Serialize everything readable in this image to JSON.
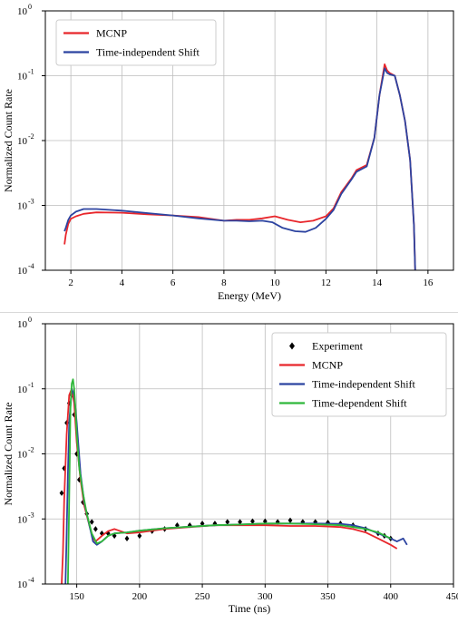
{
  "chart_data": [
    {
      "type": "line",
      "xlabel": "Energy (MeV)",
      "ylabel": "Normalized Count Rate",
      "xlim": [
        1,
        17
      ],
      "ylim": [
        0.0001,
        1
      ],
      "yscale": "log",
      "grid": true,
      "legend_placement": "top-left",
      "xticks": [
        2,
        4,
        6,
        8,
        10,
        12,
        14,
        16
      ],
      "yticks": [
        {
          "value": 0.0001,
          "base": "10",
          "exp": "-4"
        },
        {
          "value": 0.001,
          "base": "10",
          "exp": "-3"
        },
        {
          "value": 0.01,
          "base": "10",
          "exp": "-2"
        },
        {
          "value": 0.1,
          "base": "10",
          "exp": "-1"
        },
        {
          "value": 1,
          "base": "10",
          "exp": "0"
        }
      ],
      "series": [
        {
          "name": "MCNP",
          "color": "#e8262b",
          "x": [
            1.75,
            1.8,
            1.9,
            2.0,
            2.2,
            2.5,
            3.0,
            4.0,
            5.0,
            6.0,
            7.0,
            8.0,
            8.5,
            9.0,
            9.5,
            10.0,
            10.5,
            11.0,
            11.5,
            12.0,
            12.3,
            12.6,
            13.0,
            13.2,
            13.6,
            13.9,
            14.1,
            14.3,
            14.4,
            14.5,
            14.7,
            14.9,
            15.1,
            15.3,
            15.45,
            15.5
          ],
          "y": [
            0.00025,
            0.00035,
            0.00052,
            0.00062,
            0.00068,
            0.00074,
            0.00078,
            0.00077,
            0.00073,
            0.0007,
            0.00066,
            0.00058,
            0.0006,
            0.0006,
            0.00063,
            0.00068,
            0.0006,
            0.00055,
            0.00058,
            0.00068,
            0.0009,
            0.0016,
            0.0026,
            0.0035,
            0.0042,
            0.011,
            0.05,
            0.15,
            0.12,
            0.11,
            0.1,
            0.05,
            0.02,
            0.005,
            0.0005,
            0.0001
          ]
        },
        {
          "name": "Time-independent Shift",
          "color": "#2c43a0",
          "x": [
            1.75,
            1.8,
            1.9,
            2.0,
            2.2,
            2.5,
            3.0,
            4.0,
            5.0,
            6.0,
            7.0,
            8.0,
            8.5,
            9.0,
            9.5,
            9.9,
            10.3,
            10.8,
            11.2,
            11.6,
            12.0,
            12.3,
            12.6,
            13.0,
            13.2,
            13.6,
            13.9,
            14.1,
            14.3,
            14.4,
            14.5,
            14.7,
            14.9,
            15.1,
            15.3,
            15.45,
            15.5
          ],
          "y": [
            0.0004,
            0.00045,
            0.0006,
            0.0007,
            0.0008,
            0.00088,
            0.00088,
            0.00083,
            0.00076,
            0.0007,
            0.00063,
            0.00058,
            0.00058,
            0.00057,
            0.00058,
            0.00055,
            0.00045,
            0.0004,
            0.00039,
            0.00045,
            0.00062,
            0.00085,
            0.0015,
            0.0025,
            0.0033,
            0.004,
            0.011,
            0.05,
            0.13,
            0.11,
            0.105,
            0.1,
            0.05,
            0.02,
            0.005,
            0.0005,
            0.0001
          ]
        }
      ]
    },
    {
      "type": "line",
      "xlabel": "Time (ns)",
      "ylabel": "Normalized Count Rate",
      "xlim": [
        125,
        450
      ],
      "ylim": [
        0.0001,
        1
      ],
      "yscale": "log",
      "grid": true,
      "legend_placement": "top-right",
      "xticks": [
        150,
        200,
        250,
        300,
        350,
        400,
        450
      ],
      "yticks": [
        {
          "value": 0.0001,
          "base": "10",
          "exp": "-4"
        },
        {
          "value": 0.001,
          "base": "10",
          "exp": "-3"
        },
        {
          "value": 0.01,
          "base": "10",
          "exp": "-2"
        },
        {
          "value": 0.1,
          "base": "10",
          "exp": "-1"
        },
        {
          "value": 1,
          "base": "10",
          "exp": "0"
        }
      ],
      "series": [
        {
          "name": "Experiment",
          "color": "#000000",
          "marker": "diamond",
          "x": [
            138,
            140,
            142,
            144,
            146,
            148,
            150,
            152,
            155,
            158,
            162,
            165,
            170,
            175,
            180,
            190,
            200,
            210,
            220,
            230,
            240,
            250,
            260,
            270,
            280,
            290,
            300,
            310,
            320,
            330,
            340,
            350,
            360,
            370,
            380,
            390,
            395,
            400
          ],
          "y": [
            0.0025,
            0.006,
            0.03,
            0.06,
            0.08,
            0.04,
            0.01,
            0.004,
            0.0018,
            0.0012,
            0.0009,
            0.0007,
            0.0006,
            0.0006,
            0.00055,
            0.0005,
            0.00055,
            0.00065,
            0.0007,
            0.0008,
            0.0008,
            0.00085,
            0.00085,
            0.0009,
            0.0009,
            0.00092,
            0.00092,
            0.0009,
            0.00095,
            0.0009,
            0.0009,
            0.00088,
            0.00085,
            0.0008,
            0.0007,
            0.0006,
            0.00055,
            0.0005
          ]
        },
        {
          "name": "MCNP",
          "color": "#e8262b",
          "x": [
            138,
            139,
            140,
            142,
            144,
            146,
            148,
            150,
            153,
            156,
            160,
            163,
            165,
            170,
            175,
            180,
            190,
            200,
            220,
            240,
            260,
            280,
            300,
            320,
            340,
            360,
            370,
            380,
            390,
            400,
            405
          ],
          "y": [
            0.0001,
            0.0003,
            0.002,
            0.02,
            0.08,
            0.1,
            0.06,
            0.015,
            0.004,
            0.0016,
            0.0008,
            0.0005,
            0.00045,
            0.00055,
            0.00065,
            0.0007,
            0.0006,
            0.00062,
            0.0007,
            0.00075,
            0.0008,
            0.0008,
            0.0008,
            0.00078,
            0.00078,
            0.00075,
            0.0007,
            0.00062,
            0.0005,
            0.0004,
            0.00035
          ]
        },
        {
          "name": "Time-independent Shift",
          "color": "#2c43a0",
          "x": [
            141,
            142,
            143,
            144,
            146,
            148,
            150,
            153,
            156,
            160,
            163,
            166,
            170,
            175,
            180,
            190,
            200,
            220,
            240,
            260,
            280,
            300,
            320,
            340,
            360,
            370,
            380,
            390,
            400,
            405,
            410,
            413
          ],
          "y": [
            0.0001,
            0.0006,
            0.005,
            0.03,
            0.1,
            0.08,
            0.03,
            0.005,
            0.0018,
            0.0008,
            0.00045,
            0.0004,
            0.00045,
            0.00055,
            0.0006,
            0.00062,
            0.00066,
            0.00072,
            0.00076,
            0.0008,
            0.00082,
            0.00085,
            0.00085,
            0.00085,
            0.00084,
            0.0008,
            0.00072,
            0.0006,
            0.0005,
            0.00045,
            0.0005,
            0.0004
          ]
        },
        {
          "name": "Time-dependent Shift",
          "color": "#2fb83a",
          "x": [
            143,
            144,
            145,
            146,
            147,
            148,
            149,
            150,
            152,
            155,
            158,
            162,
            166,
            170,
            175,
            180,
            190,
            200,
            220,
            240,
            260,
            280,
            300,
            320,
            340,
            360,
            370,
            380,
            390,
            400
          ],
          "y": [
            0.0001,
            0.002,
            0.05,
            0.12,
            0.14,
            0.1,
            0.05,
            0.02,
            0.006,
            0.0025,
            0.0012,
            0.0006,
            0.00042,
            0.00045,
            0.00055,
            0.0006,
            0.00062,
            0.00066,
            0.00072,
            0.00076,
            0.0008,
            0.00082,
            0.00085,
            0.00085,
            0.00083,
            0.0008,
            0.00075,
            0.0007,
            0.00062,
            0.0005
          ]
        }
      ]
    }
  ]
}
